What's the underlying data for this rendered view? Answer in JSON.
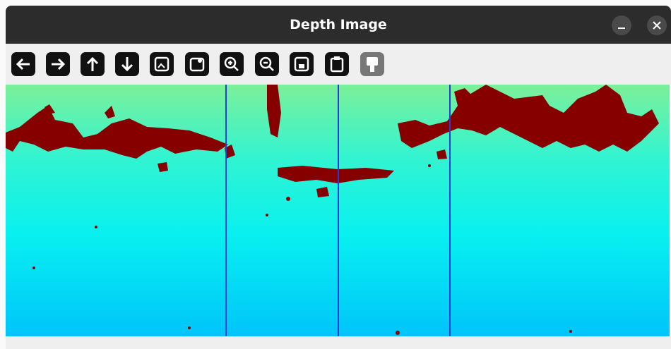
{
  "window": {
    "title": "Depth Image"
  }
}
